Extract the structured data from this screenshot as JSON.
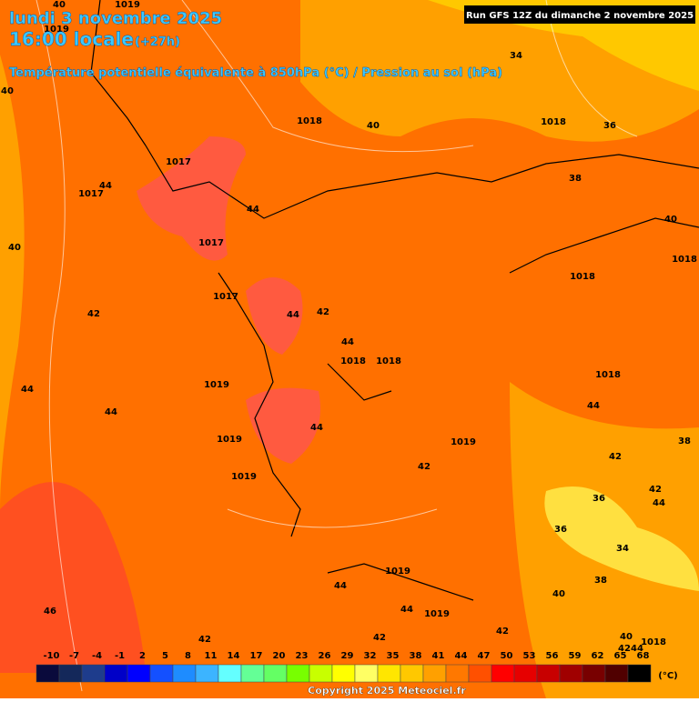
{
  "header": {
    "date": "lundi 3 novembre 2025",
    "time": "16:00 locale",
    "lead": "(+27h)",
    "subtitle": "Température potentielle équivalente à 850hPa (°C) / Pression au sol (hPa)"
  },
  "run": "Run GFS 12Z du dimanche 2 novembre 2025",
  "contour_labels": [
    40,
    1019,
    1019,
    40,
    1018,
    1017,
    44,
    1017,
    40,
    1018,
    36,
    34,
    38,
    40,
    44,
    1017,
    40,
    1018,
    1018,
    42,
    1017,
    42,
    44,
    44,
    1018,
    1018,
    1019,
    44,
    44,
    1018,
    44,
    44,
    1019,
    1019,
    38,
    42,
    42,
    1019,
    42,
    36,
    44,
    36,
    34,
    1019,
    44,
    38,
    40,
    44,
    1019,
    46,
    42,
    42,
    42,
    40,
    1018,
    42,
    44
  ],
  "legend": {
    "unit": "(°C)",
    "ticks": [
      -10,
      -7,
      -4,
      -1,
      2,
      5,
      8,
      11,
      14,
      17,
      20,
      23,
      26,
      29,
      32,
      35,
      38,
      41,
      44,
      47,
      50,
      53,
      56,
      59,
      62,
      65,
      68
    ],
    "colors": [
      "#0a0a3c",
      "#14285a",
      "#1e3c8c",
      "#0000c8",
      "#0000ff",
      "#1450ff",
      "#1e8cff",
      "#3cb4ff",
      "#64ffff",
      "#64ff96",
      "#64ff64",
      "#78ff00",
      "#c8ff00",
      "#ffff00",
      "#ffff64",
      "#ffe600",
      "#ffc800",
      "#ffa000",
      "#ff7800",
      "#ff5000",
      "#ff0000",
      "#e60000",
      "#c80000",
      "#a00000",
      "#780000",
      "#500000",
      "#000000"
    ]
  },
  "copyright": "Copyright 2025 Meteociel.fr"
}
